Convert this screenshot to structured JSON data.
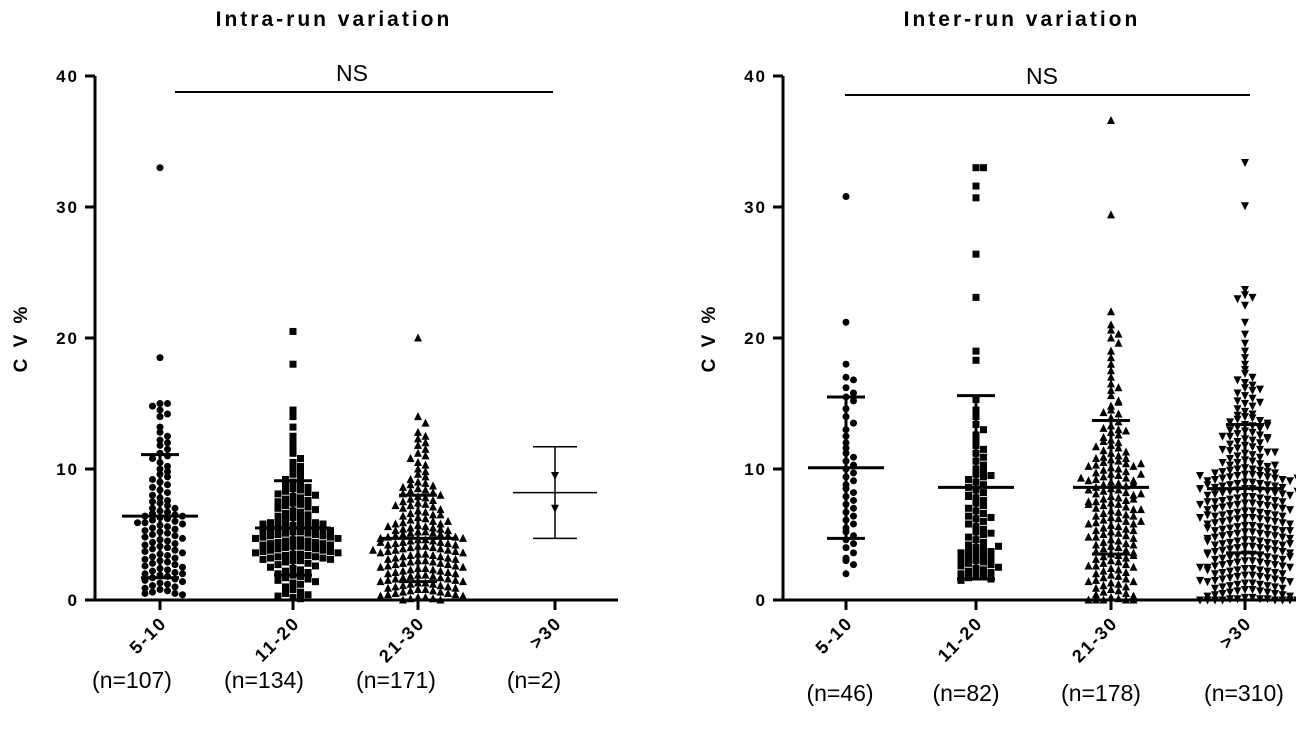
{
  "chart_data": [
    {
      "type": "scatter",
      "title": "Intra-run variation",
      "ylabel": "C V %",
      "ylim": [
        0,
        40
      ],
      "yticks": [
        "0",
        "10",
        "20",
        "30",
        "40"
      ],
      "categories": [
        "5-10",
        "11-20",
        "21-30",
        ">30"
      ],
      "n_labels": [
        "(n=107)",
        "(n=134)",
        "(n=171)",
        "(n=2)"
      ],
      "markers": [
        "circle",
        "square",
        "triangle-up",
        "triangle-down"
      ],
      "significance": "NS",
      "series": [
        {
          "mean": 6.4,
          "sd": 4.7,
          "values": [
            33.0,
            18.5,
            15.0,
            15.0,
            14.8,
            14.5,
            14.2,
            14.0,
            13.2,
            12.8,
            12.5,
            12.2,
            12.0,
            11.8,
            11.5,
            11.2,
            11.0,
            10.8,
            10.5,
            10.2,
            10.0,
            9.8,
            9.6,
            9.4,
            9.2,
            9.0,
            8.8,
            8.6,
            8.4,
            8.2,
            8.0,
            7.8,
            7.6,
            7.5,
            7.4,
            7.2,
            7.0,
            7.0,
            6.8,
            6.7,
            6.6,
            6.5,
            6.4,
            6.3,
            6.2,
            6.1,
            6.0,
            5.9,
            5.8,
            5.7,
            5.6,
            5.5,
            5.4,
            5.3,
            5.2,
            5.1,
            5.0,
            4.9,
            4.8,
            4.7,
            4.6,
            4.5,
            4.4,
            4.3,
            4.2,
            4.1,
            4.0,
            3.9,
            3.8,
            3.7,
            3.6,
            3.5,
            3.4,
            3.3,
            3.2,
            3.1,
            3.0,
            2.9,
            2.8,
            2.7,
            2.6,
            2.5,
            2.4,
            2.3,
            2.2,
            2.1,
            2.0,
            2.0,
            1.9,
            1.8,
            1.7,
            1.6,
            1.5,
            1.4,
            1.3,
            1.2,
            1.1,
            1.0,
            0.9,
            0.8,
            0.7,
            0.6,
            0.5,
            0.5,
            0.4,
            6.4,
            5.9
          ]
        },
        {
          "mean": 5.5,
          "sd": 3.6,
          "values": [
            20.5,
            18.0,
            14.5,
            14.0,
            13.2,
            12.5,
            12.0,
            11.5,
            11.2,
            10.8,
            10.5,
            10.2,
            10.0,
            9.8,
            9.6,
            9.4,
            9.2,
            9.0,
            8.8,
            8.7,
            8.6,
            8.5,
            8.4,
            8.3,
            8.2,
            8.1,
            8.0,
            7.9,
            7.8,
            7.7,
            7.6,
            7.5,
            7.4,
            7.3,
            7.2,
            7.1,
            7.0,
            6.9,
            6.8,
            6.7,
            6.6,
            6.5,
            6.4,
            6.3,
            6.2,
            6.1,
            6.0,
            6.0,
            5.9,
            5.9,
            5.8,
            5.8,
            5.7,
            5.7,
            5.6,
            5.6,
            5.5,
            5.5,
            5.4,
            5.4,
            5.3,
            5.3,
            5.2,
            5.2,
            5.1,
            5.1,
            5.0,
            5.0,
            4.9,
            4.9,
            4.8,
            4.8,
            4.7,
            4.7,
            4.6,
            4.6,
            4.5,
            4.5,
            4.4,
            4.4,
            4.3,
            4.3,
            4.2,
            4.2,
            4.1,
            4.1,
            4.0,
            4.0,
            3.9,
            3.9,
            3.8,
            3.8,
            3.7,
            3.7,
            3.6,
            3.6,
            3.5,
            3.5,
            3.4,
            3.4,
            3.3,
            3.3,
            3.2,
            3.2,
            3.1,
            3.1,
            3.0,
            3.0,
            2.9,
            2.8,
            2.7,
            2.6,
            2.5,
            2.4,
            2.3,
            2.2,
            2.1,
            2.0,
            1.9,
            1.8,
            1.7,
            1.6,
            1.5,
            1.4,
            1.3,
            1.2,
            1.0,
            0.8,
            0.6,
            0.5,
            0.4,
            0.3,
            0.2,
            0.1
          ]
        },
        {
          "mean": 4.7,
          "sd": 3.3,
          "values": [
            20.0,
            14.0,
            13.5,
            12.8,
            12.5,
            12.3,
            12.0,
            11.8,
            11.5,
            11.2,
            11.0,
            10.8,
            10.5,
            10.3,
            10.0,
            9.8,
            9.6,
            9.4,
            9.2,
            9.0,
            8.9,
            8.8,
            8.7,
            8.6,
            8.5,
            8.4,
            8.3,
            8.2,
            8.1,
            8.0,
            7.9,
            7.8,
            7.7,
            7.6,
            7.5,
            7.4,
            7.3,
            7.2,
            7.1,
            7.0,
            6.9,
            6.8,
            6.7,
            6.6,
            6.5,
            6.4,
            6.3,
            6.2,
            6.1,
            6.0,
            5.9,
            5.8,
            5.7,
            5.6,
            5.5,
            5.5,
            5.4,
            5.4,
            5.3,
            5.3,
            5.2,
            5.2,
            5.1,
            5.1,
            5.0,
            5.0,
            4.9,
            4.9,
            4.8,
            4.8,
            4.7,
            4.7,
            4.6,
            4.6,
            4.5,
            4.5,
            4.4,
            4.4,
            4.3,
            4.3,
            4.2,
            4.2,
            4.1,
            4.1,
            4.0,
            4.0,
            3.9,
            3.9,
            3.8,
            3.8,
            3.7,
            3.7,
            3.6,
            3.6,
            3.5,
            3.5,
            3.4,
            3.4,
            3.3,
            3.3,
            3.2,
            3.2,
            3.1,
            3.1,
            3.0,
            3.0,
            2.9,
            2.9,
            2.8,
            2.8,
            2.7,
            2.7,
            2.6,
            2.6,
            2.5,
            2.5,
            2.4,
            2.4,
            2.3,
            2.3,
            2.2,
            2.2,
            2.1,
            2.1,
            2.0,
            2.0,
            1.9,
            1.9,
            1.8,
            1.8,
            1.7,
            1.7,
            1.6,
            1.6,
            1.5,
            1.5,
            1.4,
            1.4,
            1.3,
            1.3,
            1.2,
            1.2,
            1.1,
            1.1,
            1.0,
            1.0,
            0.9,
            0.9,
            0.8,
            0.8,
            0.7,
            0.7,
            0.6,
            0.6,
            0.5,
            0.5,
            0.4,
            0.4,
            0.3,
            0.3,
            0.2,
            0.2,
            0.1,
            0.1,
            0.0,
            0.0,
            6.5,
            7.2,
            5.8,
            6.0,
            4.4,
            3.8,
            5.6
          ]
        },
        {
          "mean": 8.2,
          "sd": 3.5,
          "values": [
            9.5,
            7.0
          ]
        }
      ]
    },
    {
      "type": "scatter",
      "title": "Inter-run variation",
      "ylabel": "C V %",
      "ylim": [
        0,
        40
      ],
      "yticks": [
        "0",
        "10",
        "20",
        "30",
        "40"
      ],
      "categories": [
        "5-10",
        "11-20",
        "21-30",
        ">30"
      ],
      "n_labels": [
        "(n=46)",
        "(n=82)",
        "(n=178)",
        "(n=310)"
      ],
      "markers": [
        "circle",
        "square",
        "triangle-up",
        "triangle-down"
      ],
      "significance": "NS",
      "series": [
        {
          "mean": 10.1,
          "sd": 5.4,
          "values": [
            30.8,
            21.2,
            18.0,
            17.0,
            16.8,
            16.2,
            15.8,
            15.5,
            15.2,
            14.6,
            14.0,
            13.5,
            13.0,
            12.5,
            12.0,
            11.6,
            11.2,
            10.9,
            10.6,
            10.3,
            10.0,
            9.7,
            9.4,
            9.1,
            8.8,
            8.5,
            8.2,
            7.9,
            7.6,
            7.3,
            7.0,
            6.7,
            6.4,
            6.1,
            5.8,
            5.5,
            5.2,
            4.9,
            4.6,
            4.3,
            4.0,
            3.6,
            3.2,
            3.0,
            2.7,
            2.0
          ]
        },
        {
          "mean": 8.6,
          "sd": 7.0,
          "values": [
            33.0,
            33.0,
            31.6,
            30.7,
            26.4,
            23.1,
            19.0,
            18.3,
            15.3,
            14.5,
            14.0,
            13.4,
            13.0,
            12.6,
            12.2,
            11.8,
            11.5,
            11.2,
            10.9,
            10.6,
            10.3,
            10.0,
            9.8,
            9.6,
            9.4,
            9.2,
            9.0,
            8.8,
            8.6,
            8.4,
            8.2,
            8.0,
            7.8,
            7.6,
            7.4,
            7.2,
            7.0,
            6.8,
            6.6,
            6.4,
            6.2,
            6.0,
            5.8,
            5.6,
            5.4,
            5.2,
            5.0,
            4.8,
            4.6,
            4.4,
            4.2,
            4.0,
            3.9,
            3.8,
            3.7,
            3.6,
            3.5,
            3.4,
            3.3,
            3.2,
            3.1,
            3.0,
            2.9,
            2.8,
            2.7,
            2.6,
            2.5,
            2.4,
            2.3,
            2.2,
            2.1,
            2.0,
            1.9,
            1.8,
            1.7,
            1.6,
            1.5,
            9.5,
            7.9,
            6.3,
            5.1,
            4.1
          ]
        },
        {
          "mean": 8.6,
          "sd": 5.1,
          "values": [
            36.6,
            29.4,
            22.0,
            21.0,
            20.6,
            20.3,
            20.0,
            19.6,
            19.0,
            18.5,
            18.0,
            17.5,
            17.0,
            16.5,
            16.0,
            15.6,
            15.2,
            14.8,
            14.5,
            14.2,
            13.9,
            13.6,
            13.3,
            13.0,
            12.8,
            12.6,
            12.4,
            12.2,
            12.0,
            11.8,
            11.6,
            11.4,
            11.2,
            11.0,
            10.9,
            10.8,
            10.7,
            10.6,
            10.5,
            10.4,
            10.3,
            10.2,
            10.1,
            10.0,
            9.9,
            9.8,
            9.7,
            9.6,
            9.5,
            9.4,
            9.3,
            9.2,
            9.1,
            9.0,
            8.9,
            8.8,
            8.7,
            8.6,
            8.5,
            8.4,
            8.3,
            8.2,
            8.1,
            8.0,
            7.9,
            7.8,
            7.7,
            7.6,
            7.5,
            7.4,
            7.3,
            7.2,
            7.1,
            7.0,
            6.9,
            6.8,
            6.7,
            6.6,
            6.5,
            6.4,
            6.3,
            6.2,
            6.1,
            6.0,
            5.9,
            5.8,
            5.7,
            5.6,
            5.5,
            5.4,
            5.3,
            5.2,
            5.1,
            5.0,
            4.9,
            4.8,
            4.7,
            4.6,
            4.5,
            4.4,
            4.3,
            4.2,
            4.1,
            4.0,
            3.9,
            3.8,
            3.7,
            3.6,
            3.5,
            3.4,
            3.3,
            3.2,
            3.1,
            3.0,
            2.9,
            2.8,
            2.7,
            2.6,
            2.5,
            2.4,
            2.3,
            2.2,
            2.1,
            2.0,
            1.9,
            1.8,
            1.7,
            1.6,
            1.5,
            1.4,
            1.3,
            1.2,
            1.1,
            1.0,
            0.9,
            0.8,
            0.7,
            0.6,
            0.5,
            0.4,
            0.3,
            0.2,
            0.1,
            0.0,
            0.0,
            0.0,
            0.0,
            0.0,
            8.4,
            8.1,
            7.7,
            7.3,
            9.1,
            9.6,
            10.2,
            6.4,
            5.8,
            5.3,
            4.8,
            11.3,
            12.1,
            13.1,
            8.9,
            9.3,
            7.5,
            6.9,
            6.0,
            10.8,
            11.7,
            4.2,
            3.4,
            2.6,
            1.4,
            15.1,
            16.2,
            14.3,
            12.9,
            10.4
          ]
        },
        {
          "mean": 8.5,
          "sd": 4.9,
          "values": [
            33.4,
            30.1,
            23.7,
            23.3,
            23.1,
            23.0,
            22.5,
            21.2,
            20.3,
            19.6,
            19.0,
            18.5,
            18.0,
            17.6,
            17.3,
            17.0,
            16.8,
            16.6,
            16.4,
            16.2,
            16.0,
            15.8,
            15.6,
            15.4,
            15.2,
            15.0,
            14.8,
            14.6,
            14.4,
            14.2,
            14.0,
            13.9,
            13.8,
            13.7,
            13.6,
            13.5,
            13.4,
            13.3,
            13.2,
            13.1,
            13.0,
            12.9,
            12.8,
            12.7,
            12.6,
            12.5,
            12.4,
            12.3,
            12.2,
            12.1,
            12.0,
            11.9,
            11.8,
            11.7,
            11.6,
            11.5,
            11.4,
            11.3,
            11.2,
            11.1,
            11.0,
            10.9,
            10.8,
            10.7,
            10.6,
            10.5,
            10.4,
            10.3,
            10.2,
            10.1,
            10.0,
            10.0,
            9.9,
            9.9,
            9.8,
            9.8,
            9.7,
            9.7,
            9.6,
            9.6,
            9.5,
            9.5,
            9.4,
            9.4,
            9.3,
            9.3,
            9.2,
            9.2,
            9.1,
            9.1,
            9.0,
            9.0,
            8.9,
            8.9,
            8.8,
            8.8,
            8.7,
            8.7,
            8.6,
            8.6,
            8.5,
            8.5,
            8.4,
            8.4,
            8.3,
            8.3,
            8.2,
            8.2,
            8.1,
            8.1,
            8.0,
            8.0,
            7.9,
            7.9,
            7.8,
            7.8,
            7.7,
            7.7,
            7.6,
            7.6,
            7.5,
            7.5,
            7.4,
            7.4,
            7.3,
            7.3,
            7.2,
            7.2,
            7.1,
            7.1,
            7.0,
            7.0,
            6.9,
            6.9,
            6.8,
            6.8,
            6.7,
            6.7,
            6.6,
            6.6,
            6.5,
            6.5,
            6.4,
            6.4,
            6.3,
            6.3,
            6.2,
            6.2,
            6.1,
            6.1,
            6.0,
            6.0,
            5.9,
            5.9,
            5.8,
            5.8,
            5.7,
            5.7,
            5.6,
            5.6,
            5.5,
            5.5,
            5.4,
            5.4,
            5.3,
            5.3,
            5.2,
            5.2,
            5.1,
            5.1,
            5.0,
            5.0,
            4.9,
            4.9,
            4.8,
            4.8,
            4.7,
            4.7,
            4.6,
            4.6,
            4.5,
            4.5,
            4.4,
            4.4,
            4.3,
            4.3,
            4.2,
            4.2,
            4.1,
            4.1,
            4.0,
            4.0,
            3.9,
            3.9,
            3.8,
            3.8,
            3.7,
            3.7,
            3.6,
            3.6,
            3.5,
            3.5,
            3.4,
            3.4,
            3.3,
            3.3,
            3.2,
            3.2,
            3.1,
            3.1,
            3.0,
            3.0,
            2.9,
            2.9,
            2.8,
            2.8,
            2.7,
            2.7,
            2.6,
            2.6,
            2.5,
            2.5,
            2.4,
            2.4,
            2.3,
            2.3,
            2.2,
            2.2,
            2.1,
            2.1,
            2.0,
            2.0,
            1.9,
            1.9,
            1.8,
            1.8,
            1.7,
            1.7,
            1.6,
            1.6,
            1.5,
            1.5,
            1.4,
            1.4,
            1.3,
            1.3,
            1.2,
            1.2,
            1.1,
            1.1,
            1.0,
            1.0,
            0.9,
            0.9,
            0.8,
            0.8,
            0.7,
            0.7,
            0.6,
            0.6,
            0.5,
            0.5,
            0.4,
            0.4,
            0.3,
            0.3,
            0.2,
            0.2,
            0.1,
            0.1,
            0.1,
            0.1,
            0.0,
            0.0,
            0.0,
            0.0,
            0.0,
            0.0,
            0.0,
            0.0,
            12.5,
            11.5,
            10.5,
            9.5,
            8.5,
            7.5,
            6.5,
            5.5,
            4.5,
            3.5,
            2.5,
            1.5,
            13.3,
            12.3,
            11.3,
            10.3,
            9.3,
            8.3,
            7.3,
            6.3,
            5.3,
            4.3,
            3.3,
            2.3,
            16.1,
            15.1,
            14.1,
            8.8
          ]
        }
      ]
    }
  ]
}
